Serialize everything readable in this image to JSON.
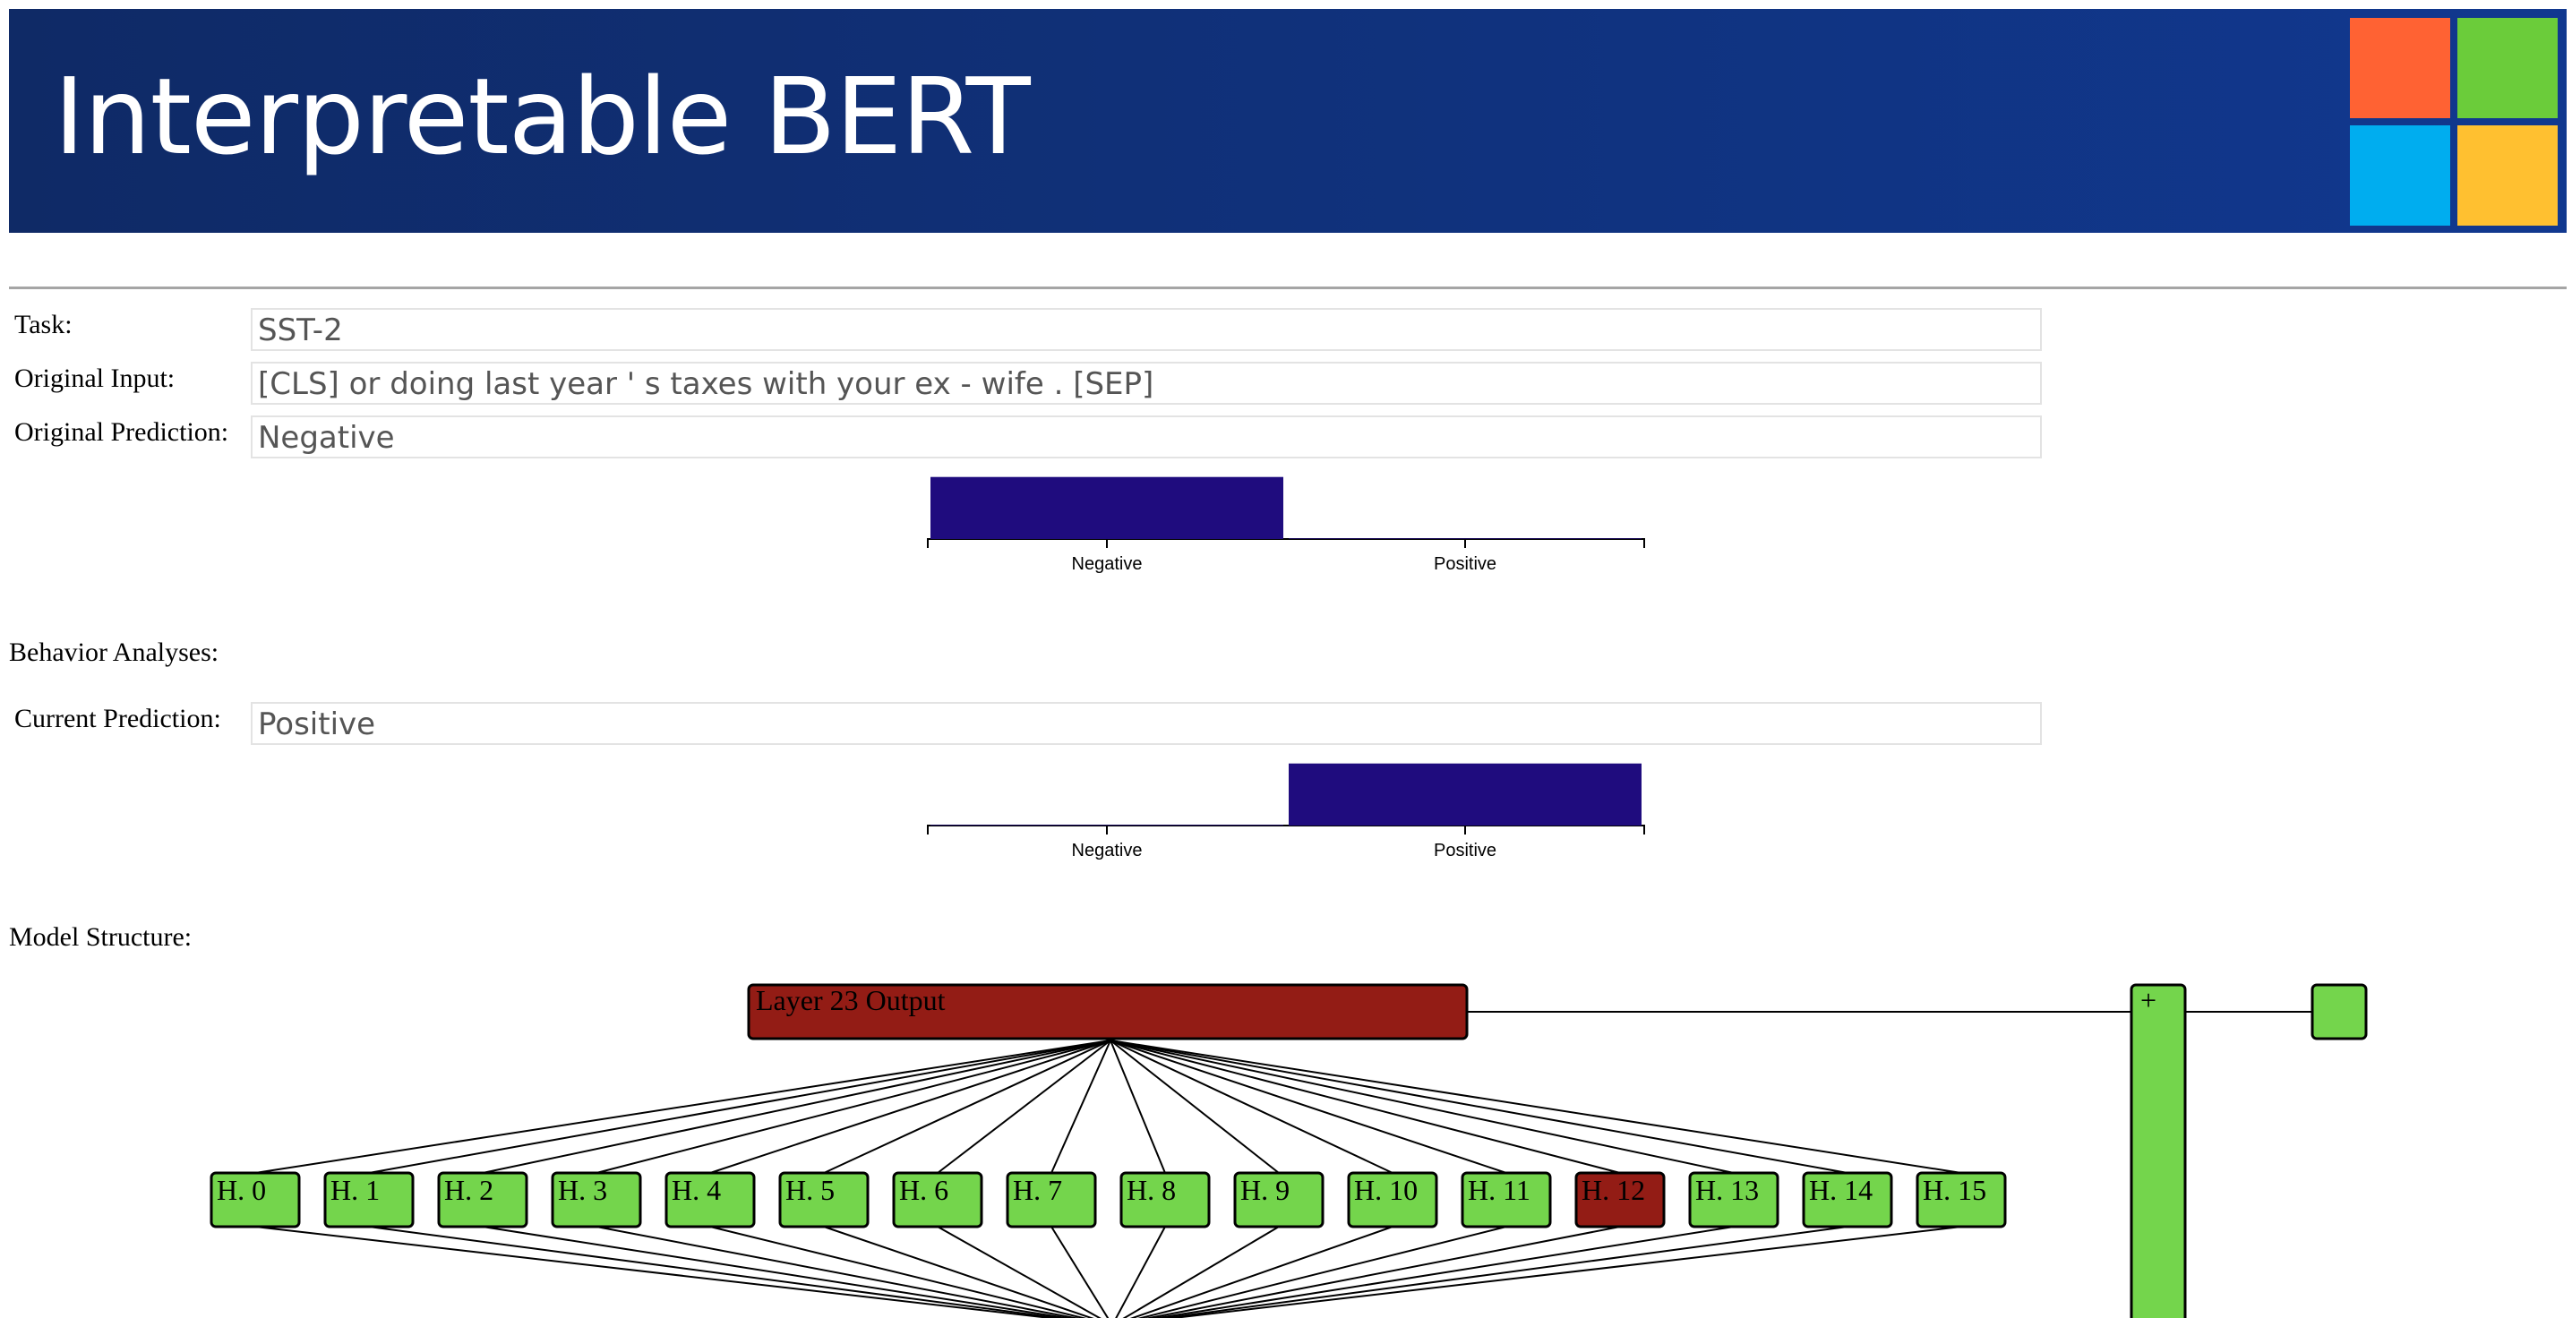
{
  "header": {
    "title": "Interpretable BERT",
    "logo_colors": [
      "#ff6233",
      "#6bcc3a",
      "#00adef",
      "#ffc030"
    ]
  },
  "form": {
    "task_label": "Task:",
    "task_value": "SST-2",
    "input_label": "Original Input:",
    "input_value": "[CLS] or doing last year ' s taxes with your ex - wife . [SEP]",
    "orig_pred_label": "Original Prediction:",
    "orig_pred_value": "Negative",
    "behavior_label": "Behavior Analyses:",
    "curr_pred_label": "Current Prediction:",
    "curr_pred_value": "Positive",
    "model_structure_label": "Model Structure:"
  },
  "chart_data": [
    {
      "type": "bar",
      "categories": [
        "Negative",
        "Positive"
      ],
      "values": [
        0.99,
        0.01
      ],
      "ylim": [
        0,
        1
      ],
      "bar_color": "#1f0c7e"
    },
    {
      "type": "bar",
      "categories": [
        "Negative",
        "Positive"
      ],
      "values": [
        0.01,
        0.99
      ],
      "ylim": [
        0,
        1
      ],
      "bar_color": "#1f0c7e"
    }
  ],
  "model_structure": {
    "layer_label": "Layer 23 Output",
    "plus_label": "+",
    "heads": [
      "H. 0",
      "H. 1",
      "H. 2",
      "H. 3",
      "H. 4",
      "H. 5",
      "H. 6",
      "H. 7",
      "H. 8",
      "H. 9",
      "H. 10",
      "H. 11",
      "H. 12",
      "H. 13",
      "H. 14",
      "H. 15"
    ],
    "highlighted_head": 12,
    "colors": {
      "active": "#931c15",
      "inactive": "#74d54c"
    }
  }
}
